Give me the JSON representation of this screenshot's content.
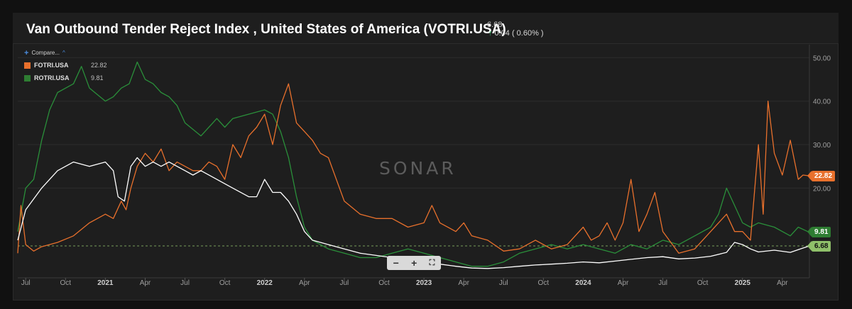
{
  "header": {
    "title": "Van Outbound Tender Reject Index , United States of America (VOTRI.USA)",
    "last_value": "6.68",
    "change": "0.04 ( 0.60% )"
  },
  "legend": {
    "compare_label": "Compare...",
    "items": [
      {
        "name": "FOTRI.USA",
        "value": "22.82",
        "color": "#e8702c"
      },
      {
        "name": "ROTRI.USA",
        "value": "9.81",
        "color": "#2e7d32"
      }
    ]
  },
  "watermark": "SONAR",
  "colors": {
    "primary": "#ffffff",
    "fotri": "#e8702c",
    "rotri": "#2a8f3a",
    "lastline": "#8fc06a"
  },
  "chart_data": {
    "type": "line",
    "ylim": [
      0,
      53
    ],
    "yticks": [
      20,
      30,
      40,
      50
    ],
    "ytick_labels": [
      "20.00",
      "30.00",
      "40.00",
      "50.00"
    ],
    "x_start": 2020.45,
    "x_end": 2025.42,
    "xticks": [
      {
        "label": "Jul",
        "x": 2020.5,
        "year": false
      },
      {
        "label": "Oct",
        "x": 2020.75,
        "year": false
      },
      {
        "label": "2021",
        "x": 2021.0,
        "year": true
      },
      {
        "label": "Apr",
        "x": 2021.25,
        "year": false
      },
      {
        "label": "Jul",
        "x": 2021.5,
        "year": false
      },
      {
        "label": "Oct",
        "x": 2021.75,
        "year": false
      },
      {
        "label": "2022",
        "x": 2022.0,
        "year": true
      },
      {
        "label": "Apr",
        "x": 2022.25,
        "year": false
      },
      {
        "label": "Jul",
        "x": 2022.5,
        "year": false
      },
      {
        "label": "Oct",
        "x": 2022.75,
        "year": false
      },
      {
        "label": "2023",
        "x": 2023.0,
        "year": true
      },
      {
        "label": "Apr",
        "x": 2023.25,
        "year": false
      },
      {
        "label": "Jul",
        "x": 2023.5,
        "year": false
      },
      {
        "label": "Oct",
        "x": 2023.75,
        "year": false
      },
      {
        "label": "2024",
        "x": 2024.0,
        "year": true
      },
      {
        "label": "Apr",
        "x": 2024.25,
        "year": false
      },
      {
        "label": "Jul",
        "x": 2024.5,
        "year": false
      },
      {
        "label": "Oct",
        "x": 2024.75,
        "year": false
      },
      {
        "label": "2025",
        "x": 2025.0,
        "year": true
      },
      {
        "label": "Apr",
        "x": 2025.25,
        "year": false
      }
    ],
    "last_value_line": 6.68,
    "series": [
      {
        "name": "VOTRI.USA",
        "color": "#ffffff",
        "points": [
          [
            2020.45,
            8
          ],
          [
            2020.5,
            15
          ],
          [
            2020.6,
            20
          ],
          [
            2020.7,
            24
          ],
          [
            2020.8,
            26
          ],
          [
            2020.9,
            25
          ],
          [
            2021.0,
            26
          ],
          [
            2021.05,
            24
          ],
          [
            2021.08,
            18
          ],
          [
            2021.12,
            17
          ],
          [
            2021.16,
            25
          ],
          [
            2021.2,
            27
          ],
          [
            2021.25,
            25
          ],
          [
            2021.3,
            26
          ],
          [
            2021.35,
            25
          ],
          [
            2021.4,
            26
          ],
          [
            2021.45,
            25
          ],
          [
            2021.5,
            24
          ],
          [
            2021.55,
            23
          ],
          [
            2021.6,
            24
          ],
          [
            2021.7,
            22
          ],
          [
            2021.8,
            20
          ],
          [
            2021.9,
            18
          ],
          [
            2021.95,
            18
          ],
          [
            2022.0,
            22
          ],
          [
            2022.05,
            19
          ],
          [
            2022.1,
            19
          ],
          [
            2022.15,
            17
          ],
          [
            2022.2,
            14
          ],
          [
            2022.25,
            10
          ],
          [
            2022.3,
            8
          ],
          [
            2022.4,
            7
          ],
          [
            2022.5,
            6
          ],
          [
            2022.6,
            5
          ],
          [
            2022.7,
            4.5
          ],
          [
            2022.8,
            4
          ],
          [
            2022.9,
            3.5
          ],
          [
            2023.0,
            3
          ],
          [
            2023.1,
            2.5
          ],
          [
            2023.2,
            2
          ],
          [
            2023.3,
            1.6
          ],
          [
            2023.4,
            1.5
          ],
          [
            2023.5,
            1.7
          ],
          [
            2023.6,
            2
          ],
          [
            2023.7,
            2.3
          ],
          [
            2023.8,
            2.5
          ],
          [
            2023.9,
            2.7
          ],
          [
            2024.0,
            3
          ],
          [
            2024.1,
            2.8
          ],
          [
            2024.2,
            3.2
          ],
          [
            2024.3,
            3.6
          ],
          [
            2024.4,
            4
          ],
          [
            2024.5,
            4.2
          ],
          [
            2024.6,
            3.7
          ],
          [
            2024.7,
            3.9
          ],
          [
            2024.8,
            4.3
          ],
          [
            2024.9,
            5.2
          ],
          [
            2024.95,
            7.5
          ],
          [
            2025.0,
            7
          ],
          [
            2025.05,
            6
          ],
          [
            2025.1,
            5.3
          ],
          [
            2025.2,
            5.7
          ],
          [
            2025.3,
            5.2
          ],
          [
            2025.38,
            6.2
          ],
          [
            2025.42,
            6.68
          ]
        ]
      },
      {
        "name": "FOTRI.USA",
        "color": "#e8702c",
        "points": [
          [
            2020.45,
            5
          ],
          [
            2020.47,
            16
          ],
          [
            2020.5,
            7
          ],
          [
            2020.55,
            5.5
          ],
          [
            2020.6,
            6.5
          ],
          [
            2020.7,
            7.5
          ],
          [
            2020.8,
            9
          ],
          [
            2020.9,
            12
          ],
          [
            2021.0,
            14
          ],
          [
            2021.05,
            13
          ],
          [
            2021.1,
            17
          ],
          [
            2021.13,
            15
          ],
          [
            2021.16,
            20
          ],
          [
            2021.2,
            25
          ],
          [
            2021.25,
            28
          ],
          [
            2021.3,
            26
          ],
          [
            2021.35,
            29
          ],
          [
            2021.4,
            24
          ],
          [
            2021.45,
            26
          ],
          [
            2021.5,
            25
          ],
          [
            2021.55,
            24
          ],
          [
            2021.6,
            24
          ],
          [
            2021.65,
            26
          ],
          [
            2021.7,
            25
          ],
          [
            2021.75,
            22
          ],
          [
            2021.8,
            30
          ],
          [
            2021.85,
            27
          ],
          [
            2021.9,
            32
          ],
          [
            2021.95,
            34
          ],
          [
            2022.0,
            37
          ],
          [
            2022.05,
            30
          ],
          [
            2022.1,
            39
          ],
          [
            2022.15,
            44
          ],
          [
            2022.2,
            35
          ],
          [
            2022.25,
            33
          ],
          [
            2022.3,
            31
          ],
          [
            2022.35,
            28
          ],
          [
            2022.4,
            27
          ],
          [
            2022.5,
            17
          ],
          [
            2022.6,
            14
          ],
          [
            2022.7,
            13
          ],
          [
            2022.8,
            13
          ],
          [
            2022.9,
            11
          ],
          [
            2023.0,
            12
          ],
          [
            2023.05,
            16
          ],
          [
            2023.1,
            12
          ],
          [
            2023.2,
            10
          ],
          [
            2023.25,
            12
          ],
          [
            2023.3,
            9
          ],
          [
            2023.4,
            8
          ],
          [
            2023.5,
            5.5
          ],
          [
            2023.6,
            6
          ],
          [
            2023.7,
            8
          ],
          [
            2023.8,
            6
          ],
          [
            2023.9,
            7
          ],
          [
            2024.0,
            11
          ],
          [
            2024.05,
            8
          ],
          [
            2024.1,
            9
          ],
          [
            2024.15,
            12
          ],
          [
            2024.2,
            8
          ],
          [
            2024.25,
            12
          ],
          [
            2024.3,
            22
          ],
          [
            2024.35,
            10
          ],
          [
            2024.4,
            14
          ],
          [
            2024.45,
            19
          ],
          [
            2024.5,
            10
          ],
          [
            2024.6,
            5
          ],
          [
            2024.7,
            6
          ],
          [
            2024.8,
            10
          ],
          [
            2024.9,
            14
          ],
          [
            2024.95,
            10
          ],
          [
            2025.0,
            10
          ],
          [
            2025.05,
            8
          ],
          [
            2025.1,
            30
          ],
          [
            2025.13,
            14
          ],
          [
            2025.16,
            40
          ],
          [
            2025.2,
            28
          ],
          [
            2025.25,
            23
          ],
          [
            2025.3,
            31
          ],
          [
            2025.35,
            22
          ],
          [
            2025.38,
            23
          ],
          [
            2025.42,
            22.82
          ]
        ]
      },
      {
        "name": "ROTRI.USA",
        "color": "#2a8f3a",
        "points": [
          [
            2020.45,
            10
          ],
          [
            2020.5,
            20
          ],
          [
            2020.55,
            22
          ],
          [
            2020.6,
            31
          ],
          [
            2020.65,
            38
          ],
          [
            2020.7,
            42
          ],
          [
            2020.8,
            44
          ],
          [
            2020.85,
            48
          ],
          [
            2020.9,
            43
          ],
          [
            2021.0,
            40
          ],
          [
            2021.05,
            41
          ],
          [
            2021.1,
            43
          ],
          [
            2021.15,
            44
          ],
          [
            2021.2,
            49
          ],
          [
            2021.25,
            45
          ],
          [
            2021.3,
            44
          ],
          [
            2021.35,
            42
          ],
          [
            2021.4,
            41
          ],
          [
            2021.45,
            39
          ],
          [
            2021.5,
            35
          ],
          [
            2021.6,
            32
          ],
          [
            2021.7,
            36
          ],
          [
            2021.75,
            34
          ],
          [
            2021.8,
            36
          ],
          [
            2021.9,
            37
          ],
          [
            2022.0,
            38
          ],
          [
            2022.05,
            37
          ],
          [
            2022.1,
            33
          ],
          [
            2022.15,
            27
          ],
          [
            2022.2,
            18
          ],
          [
            2022.25,
            11
          ],
          [
            2022.3,
            8
          ],
          [
            2022.4,
            6
          ],
          [
            2022.5,
            5
          ],
          [
            2022.6,
            4
          ],
          [
            2022.7,
            4
          ],
          [
            2022.8,
            5
          ],
          [
            2022.9,
            6
          ],
          [
            2023.0,
            5
          ],
          [
            2023.1,
            4
          ],
          [
            2023.2,
            3
          ],
          [
            2023.3,
            2
          ],
          [
            2023.4,
            2
          ],
          [
            2023.5,
            3
          ],
          [
            2023.6,
            5
          ],
          [
            2023.7,
            6
          ],
          [
            2023.8,
            7
          ],
          [
            2023.9,
            6
          ],
          [
            2024.0,
            7
          ],
          [
            2024.1,
            6
          ],
          [
            2024.2,
            5
          ],
          [
            2024.3,
            7
          ],
          [
            2024.4,
            6
          ],
          [
            2024.5,
            8
          ],
          [
            2024.6,
            7
          ],
          [
            2024.7,
            9
          ],
          [
            2024.8,
            11
          ],
          [
            2024.85,
            14
          ],
          [
            2024.9,
            20
          ],
          [
            2024.95,
            16
          ],
          [
            2025.0,
            12
          ],
          [
            2025.05,
            11
          ],
          [
            2025.1,
            12
          ],
          [
            2025.2,
            11
          ],
          [
            2025.3,
            9
          ],
          [
            2025.35,
            11
          ],
          [
            2025.42,
            9.81
          ]
        ]
      }
    ]
  }
}
